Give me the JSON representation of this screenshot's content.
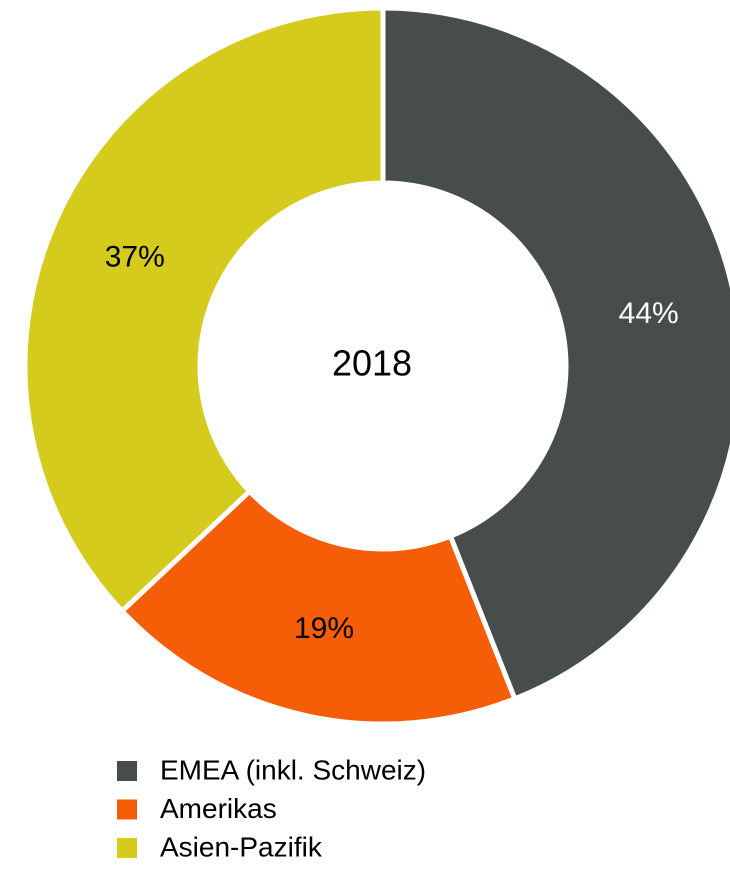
{
  "chart_data": {
    "type": "donut",
    "center_label": "2018",
    "categories": [
      "EMEA (inkl. Schweiz)",
      "Amerikas",
      "Asien-Pazifik"
    ],
    "values": [
      44,
      19,
      37
    ],
    "value_labels": [
      "44%",
      "19%",
      "37%"
    ],
    "colors": [
      "#474d4d",
      "#f55d07",
      "#d4cb1c"
    ],
    "label_colors": [
      "#ffffff",
      "#000000",
      "#000000"
    ]
  }
}
